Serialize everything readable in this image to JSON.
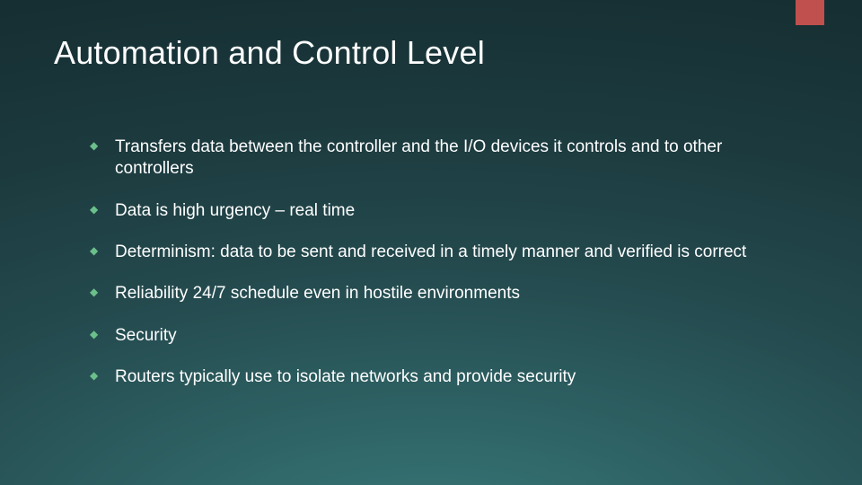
{
  "slide": {
    "title": "Automation and Control Level",
    "title_fontsize": 36,
    "title_color": "#ffffff",
    "body_fontsize": 19,
    "body_color": "#ffffff",
    "bullet_marker_color": "#6bbf8a",
    "accent_bar_color": "#c0504d",
    "background_gradient": {
      "type": "radial",
      "stops": [
        "#3a7b7b",
        "#2e6264",
        "#244a4e",
        "#1c3a3e",
        "#162f33"
      ]
    },
    "bullets": [
      "Transfers data between the controller and the I/O devices it controls and to other controllers",
      "Data is high urgency – real time",
      "Determinism: data to be sent and received in a timely manner and verified is correct",
      "Reliability 24/7 schedule even in hostile environments",
      "Security",
      "Routers typically use to isolate networks and provide security"
    ]
  }
}
